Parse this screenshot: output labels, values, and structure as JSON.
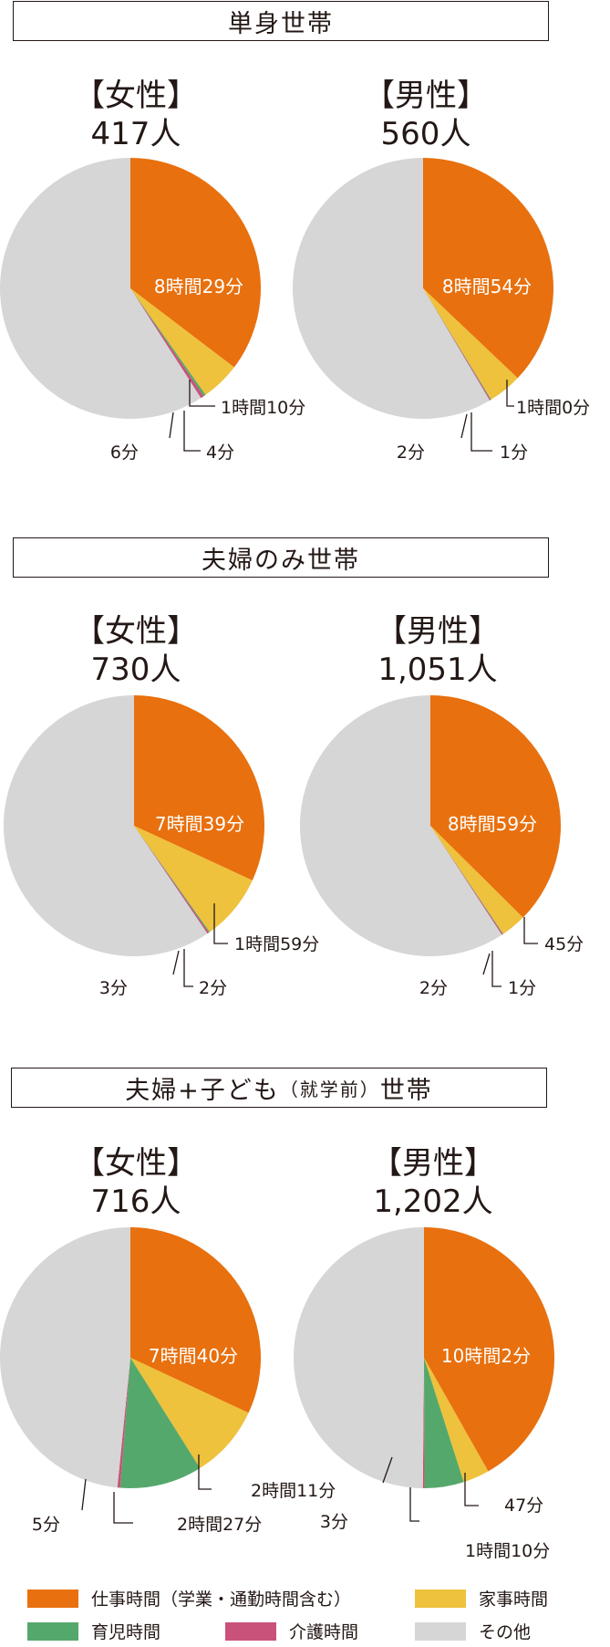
{
  "colors": {
    "work": "#e8700e",
    "housework": "#eec23c",
    "childcare": "#55a86b",
    "care": "#c9527a",
    "other": "#d6d6d6"
  },
  "sections": [
    {
      "title": "単身世帯",
      "title_small": "",
      "title_suffix": "",
      "women": {
        "label": "【女性】",
        "count": "417人"
      },
      "men": {
        "label": "【男性】",
        "count": "560人"
      }
    },
    {
      "title": "夫婦のみ世帯",
      "title_small": "",
      "title_suffix": "",
      "women": {
        "label": "【女性】",
        "count": "730人"
      },
      "men": {
        "label": "【男性】",
        "count": "1,051人"
      }
    },
    {
      "title": "夫婦+子ども",
      "title_small": "（就学前）",
      "title_suffix": "世帯",
      "women": {
        "label": "【女性】",
        "count": "716人"
      },
      "men": {
        "label": "【男性】",
        "count": "1,202人"
      }
    }
  ],
  "legend": [
    {
      "key": "work",
      "label": "仕事時間（学業・通勤時間含む）"
    },
    {
      "key": "housework",
      "label": "家事時間"
    },
    {
      "key": "childcare",
      "label": "育児時間"
    },
    {
      "key": "care",
      "label": "介護時間"
    },
    {
      "key": "other",
      "label": "その他"
    }
  ],
  "chart_data": [
    {
      "type": "pie",
      "title": "単身世帯【女性】417人",
      "slices": [
        {
          "key": "work",
          "minutes": 509,
          "label": "8時間29分"
        },
        {
          "key": "housework",
          "minutes": 70,
          "label": "1時間10分"
        },
        {
          "key": "childcare",
          "minutes": 4,
          "label": "4分"
        },
        {
          "key": "care",
          "minutes": 6,
          "label": "6分"
        },
        {
          "key": "other",
          "minutes": 851,
          "label": ""
        }
      ]
    },
    {
      "type": "pie",
      "title": "単身世帯【男性】560人",
      "slices": [
        {
          "key": "work",
          "minutes": 534,
          "label": "8時間54分"
        },
        {
          "key": "housework",
          "minutes": 60,
          "label": "1時間0分"
        },
        {
          "key": "childcare",
          "minutes": 1,
          "label": "1分"
        },
        {
          "key": "care",
          "minutes": 2,
          "label": "2分"
        },
        {
          "key": "other",
          "minutes": 843,
          "label": ""
        }
      ]
    },
    {
      "type": "pie",
      "title": "夫婦のみ世帯【女性】730人",
      "slices": [
        {
          "key": "work",
          "minutes": 459,
          "label": "7時間39分"
        },
        {
          "key": "housework",
          "minutes": 119,
          "label": "1時間59分"
        },
        {
          "key": "childcare",
          "minutes": 2,
          "label": "2分"
        },
        {
          "key": "care",
          "minutes": 3,
          "label": "3分"
        },
        {
          "key": "other",
          "minutes": 857,
          "label": ""
        }
      ]
    },
    {
      "type": "pie",
      "title": "夫婦のみ世帯【男性】1,051人",
      "slices": [
        {
          "key": "work",
          "minutes": 539,
          "label": "8時間59分"
        },
        {
          "key": "housework",
          "minutes": 45,
          "label": "45分"
        },
        {
          "key": "childcare",
          "minutes": 1,
          "label": "1分"
        },
        {
          "key": "care",
          "minutes": 2,
          "label": "2分"
        },
        {
          "key": "other",
          "minutes": 853,
          "label": ""
        }
      ]
    },
    {
      "type": "pie",
      "title": "夫婦+子ども（就学前）世帯【女性】716人",
      "slices": [
        {
          "key": "work",
          "minutes": 460,
          "label": "7時間40分"
        },
        {
          "key": "housework",
          "minutes": 131,
          "label": "2時間11分"
        },
        {
          "key": "childcare",
          "minutes": 147,
          "label": "2時間27分"
        },
        {
          "key": "care",
          "minutes": 5,
          "label": "5分"
        },
        {
          "key": "other",
          "minutes": 697,
          "label": ""
        }
      ]
    },
    {
      "type": "pie",
      "title": "夫婦+子ども（就学前）世帯【男性】1,202人",
      "slices": [
        {
          "key": "work",
          "minutes": 602,
          "label": "10時間2分"
        },
        {
          "key": "housework",
          "minutes": 47,
          "label": "47分"
        },
        {
          "key": "childcare",
          "minutes": 70,
          "label": "1時間10分"
        },
        {
          "key": "care",
          "minutes": 3,
          "label": "3分"
        },
        {
          "key": "other",
          "minutes": 718,
          "label": ""
        }
      ]
    }
  ]
}
